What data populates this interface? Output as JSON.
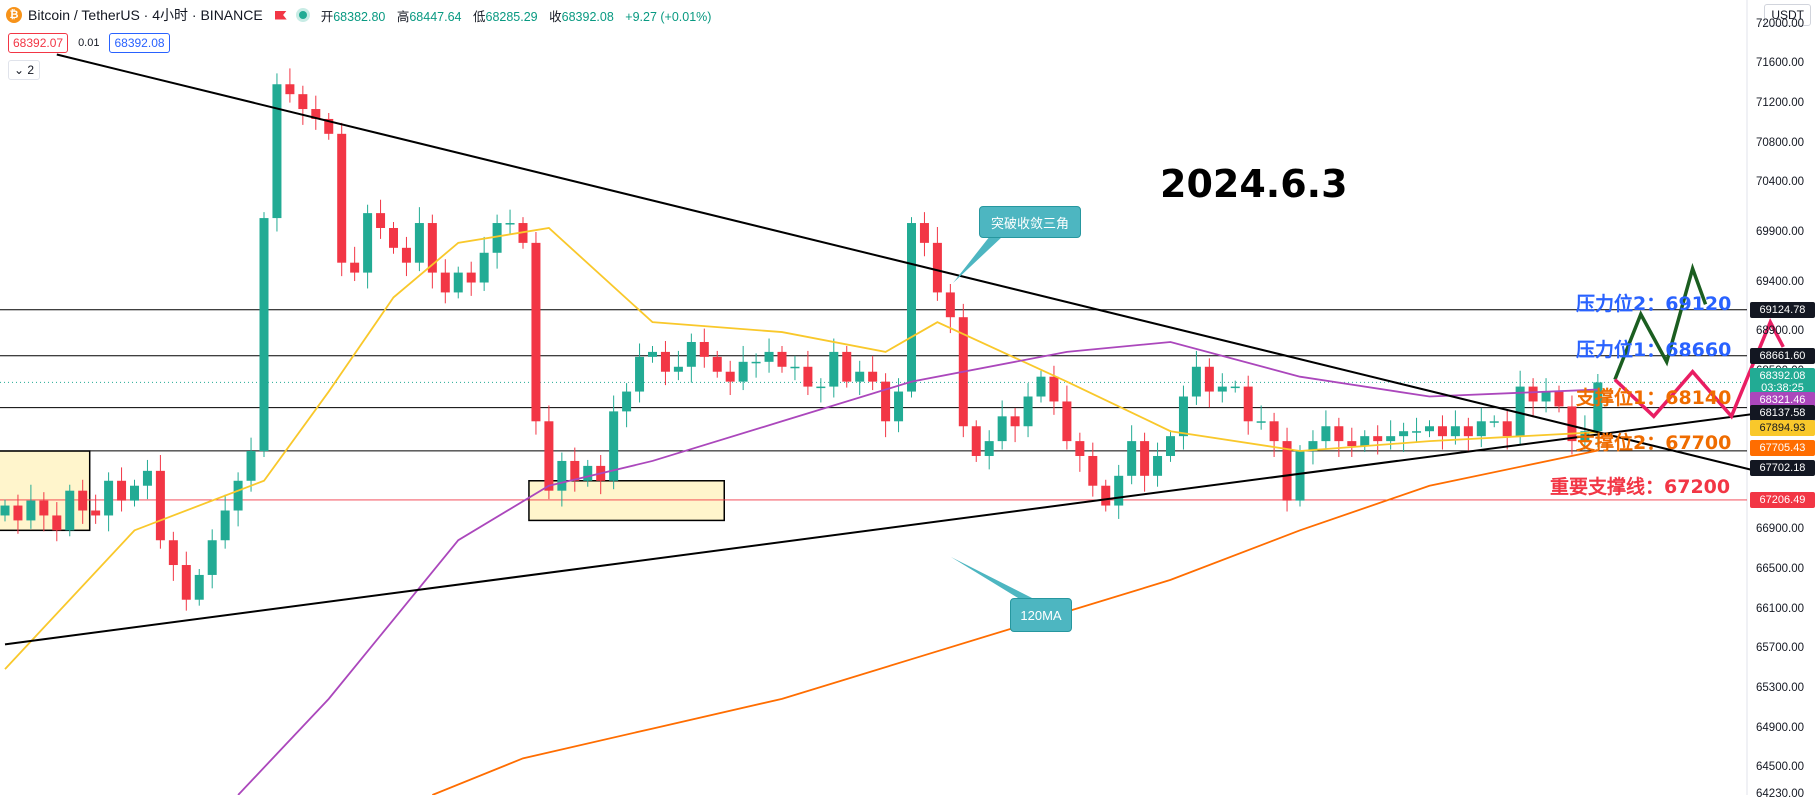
{
  "header": {
    "logo_glyph": "₿",
    "title": "Bitcoin / TetherUS · 4小时 · BINANCE",
    "ohlc": [
      {
        "label": "开",
        "value": "68382.80"
      },
      {
        "label": "高",
        "value": "68447.64"
      },
      {
        "label": "低",
        "value": "68285.29"
      },
      {
        "label": "收",
        "value": "68392.08"
      },
      {
        "label": "",
        "value": "+9.27 (+0.01%)"
      }
    ]
  },
  "trade": {
    "sell": "68392.07",
    "spread": "0.01",
    "buy": "68392.08"
  },
  "indicator_toggle": "⌄ 2",
  "currency": "USDT",
  "annotation_date": "2024.6.3",
  "levels": [
    {
      "text": "压力位2：69120",
      "color": "blue",
      "price": 69120
    },
    {
      "text": "压力位1：68660",
      "color": "blue",
      "price": 68660
    },
    {
      "text": "支撑位1：68140",
      "color": "orng",
      "price": 68140
    },
    {
      "text": "支撑位2：67700",
      "color": "orng",
      "price": 67700
    },
    {
      "text": "重要支撑线：67200",
      "color": "red",
      "price": 67200
    }
  ],
  "callouts": {
    "breakout": "突破收敛三角",
    "ma": "120MA"
  },
  "price_labels": [
    {
      "text": "69124.78",
      "price": 69124.78,
      "bg": "#131722",
      "fg": "#ffffff"
    },
    {
      "text": "68661.60",
      "price": 68661.6,
      "bg": "#131722",
      "fg": "#ffffff"
    },
    {
      "text": "68392.08",
      "price": 68455,
      "bg": "#22ab94",
      "fg": "#ffffff"
    },
    {
      "text": "03:38:25",
      "price": 68340,
      "bg": "#22ab94",
      "fg": "#ffffff"
    },
    {
      "text": "68321.46",
      "price": 68218,
      "bg": "#ab47bc",
      "fg": "#ffffff"
    },
    {
      "text": "68137.58",
      "price": 68080,
      "bg": "#131722",
      "fg": "#ffffff"
    },
    {
      "text": "67894.93",
      "price": 67930,
      "bg": "#f9c82b",
      "fg": "#131722"
    },
    {
      "text": "67705.43",
      "price": 67730,
      "bg": "#ff6d00",
      "fg": "#ffffff"
    },
    {
      "text": "67702.18",
      "price": 67530,
      "bg": "#131722",
      "fg": "#ffffff"
    },
    {
      "text": "67206.49",
      "price": 67206.49,
      "bg": "#f23645",
      "fg": "#ffffff"
    }
  ],
  "chart_data": {
    "type": "candlestick",
    "symbol": "Bitcoin / TetherUS",
    "timeframe": "4小时",
    "exchange": "BINANCE",
    "ylim": [
      64230,
      72250
    ],
    "y_ticks": [
      "72000.00",
      "71600.00",
      "71200.00",
      "70800.00",
      "70400.00",
      "69900.00",
      "69400.00",
      "68900.00",
      "68500.00",
      "66900.00",
      "66500.00",
      "66100.00",
      "65700.00",
      "65300.00",
      "64900.00",
      "64500.00",
      "64230.00"
    ],
    "y_tick_values": [
      72000,
      71600,
      71200,
      70800,
      70400,
      69900,
      69400,
      68900,
      68500,
      66900,
      66500,
      66100,
      65700,
      65300,
      64900,
      64500,
      64230
    ],
    "bar_count": 124,
    "closes": [
      67150,
      67000,
      67200,
      67050,
      66900,
      67300,
      67100,
      67050,
      67400,
      67200,
      67350,
      67500,
      66800,
      66550,
      66200,
      66450,
      66800,
      67100,
      67400,
      67700,
      70050,
      71400,
      71300,
      71150,
      71050,
      70900,
      69600,
      69500,
      70100,
      69950,
      69750,
      69600,
      70000,
      69500,
      69300,
      69500,
      69400,
      69700,
      70000,
      70000,
      69800,
      68000,
      67300,
      67600,
      67400,
      67550,
      67400,
      68100,
      68300,
      68650,
      68700,
      68500,
      68550,
      68800,
      68650,
      68500,
      68400,
      68600,
      68600,
      68700,
      68550,
      68550,
      68350,
      68350,
      68700,
      68400,
      68500,
      68400,
      68000,
      68300,
      70000,
      69800,
      69300,
      69050,
      67950,
      67650,
      67800,
      68050,
      67950,
      68250,
      68450,
      68200,
      67800,
      67650,
      67350,
      67150,
      67450,
      67800,
      67450,
      67650,
      67850,
      68250,
      68550,
      68300,
      68350,
      68350,
      68000,
      68000,
      67800,
      67200,
      67700,
      67800,
      67950,
      67800,
      67750,
      67850,
      67800,
      67850,
      67900,
      67900,
      67950,
      67850,
      67950,
      67850,
      68000,
      68000,
      67850,
      68350,
      68200,
      68300,
      68150,
      67800,
      67900,
      68392
    ],
    "candle_style": {
      "up": "#22ab94",
      "down": "#f23645"
    },
    "trendlines": [
      {
        "name": "descending",
        "color": "#000000",
        "from": {
          "bar": 4,
          "price": 71700
        },
        "to": {
          "bar": 120,
          "price": 68400
        }
      },
      {
        "name": "ascending",
        "color": "#000000",
        "from": {
          "bar": 0,
          "price": 65750
        },
        "to": {
          "bar": 123,
          "price": 67830
        }
      }
    ],
    "moving_averages": [
      {
        "color": "#f9c82b",
        "points": [
          [
            0,
            65500
          ],
          [
            10,
            66900
          ],
          [
            20,
            67400
          ],
          [
            25,
            68300
          ],
          [
            30,
            69250
          ],
          [
            35,
            69800
          ],
          [
            42,
            69950
          ],
          [
            50,
            69000
          ],
          [
            60,
            68900
          ],
          [
            68,
            68700
          ],
          [
            72,
            69000
          ],
          [
            82,
            68400
          ],
          [
            90,
            67900
          ],
          [
            100,
            67700
          ],
          [
            110,
            67800
          ],
          [
            123,
            67890
          ]
        ]
      },
      {
        "color": "#ab47bc",
        "points": [
          [
            18,
            64230
          ],
          [
            25,
            65200
          ],
          [
            30,
            66000
          ],
          [
            35,
            66800
          ],
          [
            42,
            67350
          ],
          [
            50,
            67600
          ],
          [
            60,
            68000
          ],
          [
            70,
            68400
          ],
          [
            82,
            68700
          ],
          [
            90,
            68800
          ],
          [
            100,
            68450
          ],
          [
            110,
            68250
          ],
          [
            123,
            68320
          ]
        ]
      },
      {
        "color": "#ff6d00",
        "points": [
          [
            33,
            64230
          ],
          [
            40,
            64600
          ],
          [
            50,
            64900
          ],
          [
            60,
            65200
          ],
          [
            70,
            65600
          ],
          [
            80,
            66000
          ],
          [
            90,
            66400
          ],
          [
            100,
            66900
          ],
          [
            110,
            67350
          ],
          [
            123,
            67705
          ]
        ]
      }
    ],
    "horizontal_lines": [
      69124.78,
      68661.6,
      68137.58,
      67702.18,
      67206.49
    ],
    "forecast_paths": [
      {
        "color": "#1b5e20",
        "points": [
          [
            122,
            68420
          ],
          [
            124,
            69080
          ],
          [
            126,
            68600
          ],
          [
            128,
            69540
          ],
          [
            129,
            69180
          ]
        ]
      },
      {
        "color": "#e91e63",
        "points": [
          [
            122,
            68420
          ],
          [
            125,
            68050
          ],
          [
            128,
            68500
          ],
          [
            131,
            68050
          ],
          [
            134,
            69000
          ],
          [
            135,
            68750
          ]
        ]
      }
    ],
    "highlight_boxes": [
      {
        "from_bar": 0,
        "to_bar": 6,
        "low": 66900,
        "high": 67700
      },
      {
        "from_bar": 41,
        "to_bar": 55,
        "low": 67000,
        "high": 67400
      }
    ]
  }
}
